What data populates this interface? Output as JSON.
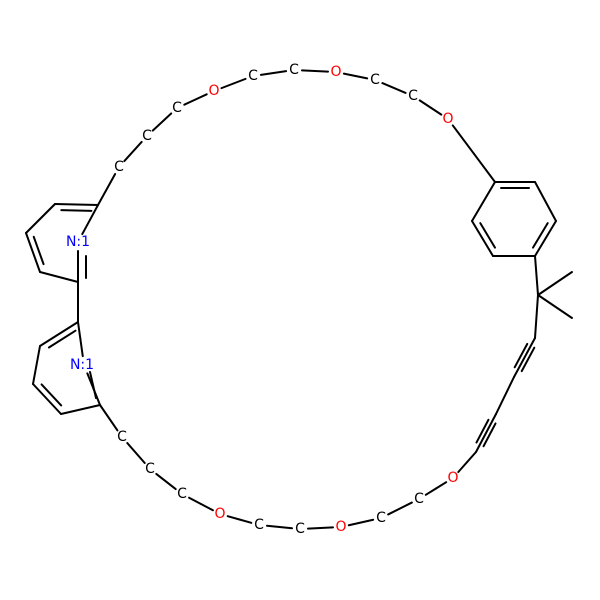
{
  "molecule": {
    "colors": {
      "carbon": "#000000",
      "oxygen": "#ff0000",
      "nitrogen": "#0000ff",
      "background": "#ffffff"
    },
    "atoms": [
      {
        "id": "c1",
        "label": "C",
        "element": "C"
      },
      {
        "id": "c2",
        "label": "C",
        "element": "C"
      },
      {
        "id": "o1",
        "label": "O",
        "element": "O"
      },
      {
        "id": "c3",
        "label": "C",
        "element": "C"
      },
      {
        "id": "c4",
        "label": "C",
        "element": "C"
      },
      {
        "id": "o2",
        "label": "O",
        "element": "O"
      },
      {
        "id": "c5",
        "label": "C",
        "element": "C"
      },
      {
        "id": "c6",
        "label": "C",
        "element": "C"
      },
      {
        "id": "o3",
        "label": "O",
        "element": "O"
      },
      {
        "id": "c7",
        "label": "C",
        "element": "C"
      },
      {
        "id": "c8",
        "label": "C",
        "element": "C"
      },
      {
        "id": "c9",
        "label": "C",
        "element": "C"
      },
      {
        "id": "o4",
        "label": "O",
        "element": "O"
      },
      {
        "id": "c10",
        "label": "C",
        "element": "C"
      },
      {
        "id": "c11",
        "label": "C",
        "element": "C"
      },
      {
        "id": "o5",
        "label": "O",
        "element": "O"
      },
      {
        "id": "c12",
        "label": "C",
        "element": "C"
      },
      {
        "id": "c13",
        "label": "C",
        "element": "C"
      },
      {
        "id": "o6",
        "label": "O",
        "element": "O"
      },
      {
        "id": "c14",
        "label": "C",
        "element": "C"
      },
      {
        "id": "c15",
        "label": "C",
        "element": "C"
      },
      {
        "id": "c16",
        "label": "C",
        "element": "C"
      },
      {
        "id": "n1",
        "label": "N:1",
        "element": "N"
      },
      {
        "id": "n2",
        "label": "N:1",
        "element": "N"
      }
    ]
  }
}
